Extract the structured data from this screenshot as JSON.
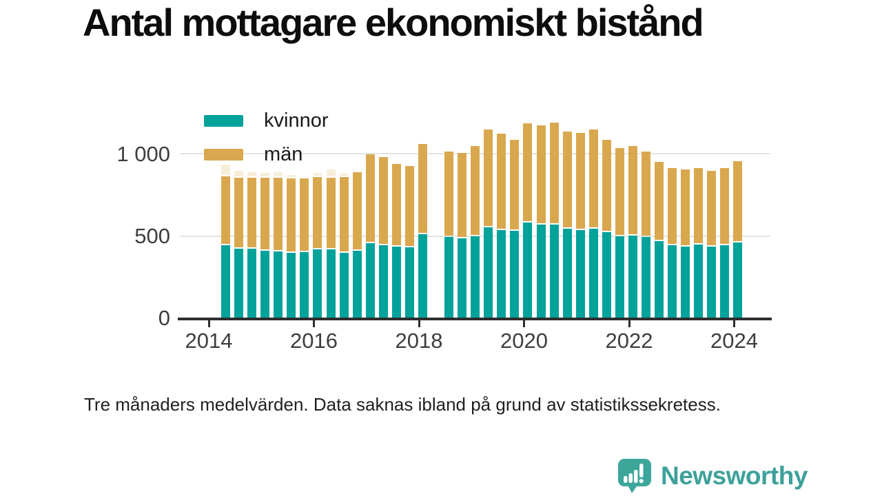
{
  "header": {
    "title": "Antal mottagare ekonomiskt bistånd"
  },
  "legend": {
    "items": [
      {
        "label": "kvinnor",
        "color": "#00a29a"
      },
      {
        "label": "män",
        "color": "#d9a84e"
      }
    ]
  },
  "yaxis": {
    "labels": [
      "1 000",
      "500",
      "0"
    ]
  },
  "xaxis": {
    "labels": [
      "2014",
      "2016",
      "2018",
      "2020",
      "2022",
      "2024"
    ]
  },
  "caption": {
    "text": "Tre månaders medelvärden. Data saknas ibland på grund av statistikssekretess."
  },
  "branding": {
    "name": "Newsworthy",
    "icon": "newsworthy-speech-bubble-bars-icon",
    "icon_color": "#3da69b",
    "text_color": "#3da19a"
  },
  "chart_data": {
    "type": "bar",
    "stacked": true,
    "title": "Antal mottagare ekonomiskt bistånd",
    "xlabel": "",
    "ylabel": "",
    "ylim": [
      0,
      1250
    ],
    "yticks": [
      0,
      500,
      1000
    ],
    "ytick_labels": [
      "0",
      "500",
      "1 000"
    ],
    "xtick_labels": [
      "2014",
      "2016",
      "2018",
      "2020",
      "2022",
      "2024"
    ],
    "grid": "horizontal",
    "legend_position": "top-left-overlay",
    "colors": {
      "kvinnor": "#00a29a",
      "män": "#d9a84e",
      "faded_cap": "#f7eeda"
    },
    "note": "null = data saknas (2018 Q2). faded_cap = blekt segment överst på stapeln i diagrammet.",
    "categories": [
      "2014 Q2",
      "2014 Q3",
      "2014 Q4",
      "2015 Q1",
      "2015 Q2",
      "2015 Q3",
      "2015 Q4",
      "2016 Q1",
      "2016 Q2",
      "2016 Q3",
      "2016 Q4",
      "2017 Q1",
      "2017 Q2",
      "2017 Q3",
      "2017 Q4",
      "2018 Q1",
      "2018 Q2",
      "2018 Q3",
      "2018 Q4",
      "2019 Q1",
      "2019 Q2",
      "2019 Q3",
      "2019 Q4",
      "2020 Q1",
      "2020 Q2",
      "2020 Q3",
      "2020 Q4",
      "2021 Q1",
      "2021 Q2",
      "2021 Q3",
      "2021 Q4",
      "2022 Q1",
      "2022 Q2",
      "2022 Q3",
      "2022 Q4",
      "2023 Q1",
      "2023 Q2",
      "2023 Q3",
      "2023 Q4",
      "2024 Q1"
    ],
    "series": [
      {
        "name": "kvinnor",
        "values": [
          440,
          420,
          420,
          410,
          405,
          395,
          400,
          415,
          415,
          395,
          410,
          455,
          440,
          435,
          430,
          510,
          null,
          490,
          485,
          495,
          550,
          535,
          530,
          580,
          565,
          565,
          540,
          535,
          540,
          520,
          495,
          500,
          490,
          465,
          440,
          435,
          445,
          435,
          440,
          460
        ]
      },
      {
        "name": "män",
        "values": [
          420,
          430,
          430,
          440,
          445,
          450,
          445,
          440,
          435,
          460,
          475,
          535,
          535,
          500,
          490,
          545,
          null,
          520,
          515,
          545,
          590,
          580,
          550,
          600,
          600,
          620,
          590,
          585,
          600,
          560,
          535,
          540,
          520,
          480,
          470,
          465,
          465,
          455,
          470,
          490
        ]
      },
      {
        "name": "faded_cap",
        "values": [
          70,
          40,
          35,
          30,
          35,
          20,
          0,
          25,
          50,
          20,
          0,
          0,
          0,
          0,
          0,
          0,
          null,
          0,
          0,
          0,
          0,
          0,
          0,
          0,
          0,
          0,
          0,
          0,
          0,
          0,
          0,
          0,
          0,
          0,
          0,
          0,
          0,
          0,
          0,
          0
        ]
      }
    ]
  }
}
